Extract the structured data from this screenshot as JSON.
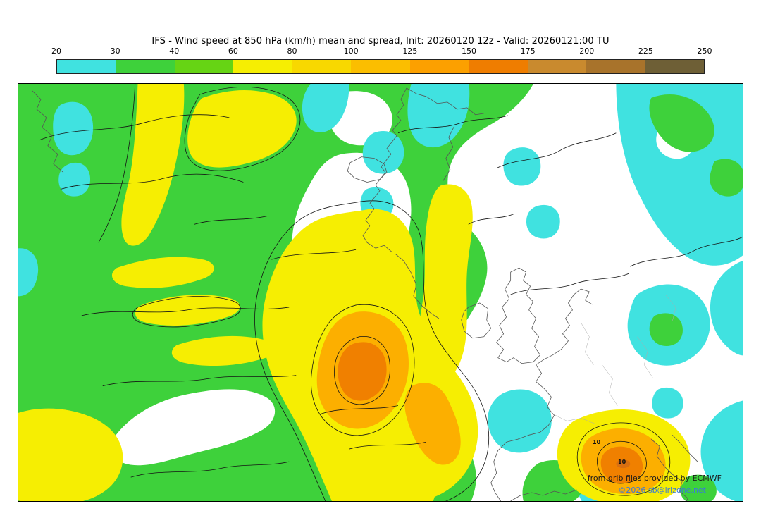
{
  "header": {
    "title": "IFS - Wind speed at 850 hPa (km/h) mean and spread, Init: 20260120 12z - Valid: 20260121:00 TU"
  },
  "colorbar": {
    "ticks": [
      "20",
      "30",
      "40",
      "60",
      "80",
      "100",
      "125",
      "150",
      "175",
      "200",
      "225",
      "250"
    ],
    "segment_colors": [
      "#40e2e0",
      "#3ed13b",
      "#66d414",
      "#f6ee02",
      "#f8d800",
      "#fbbe00",
      "#fca000",
      "#ef7d00",
      "#c98a2e",
      "#a8732b",
      "#6e5f36"
    ]
  },
  "map": {
    "contour_labels": [
      {
        "text": "10"
      },
      {
        "text": "10"
      }
    ],
    "attribution_line1": "from grib files provided by ECMWF",
    "attribution_line2": "©2026 sb@irizone.net",
    "colors": {
      "cyan": "#40e2e0",
      "green": "#3ed13b",
      "yellow": "#f6ee02",
      "orange": "#fcaf00",
      "deep_orange": "#f08000",
      "darkest_orange": "#d86f10",
      "white": "#ffffff",
      "contour": "#141414",
      "coastline": "#555555",
      "border": "#ababab"
    }
  },
  "chart_data": {
    "type": "heatmap",
    "title": "IFS - Wind speed at 850 hPa (km/h) mean and spread",
    "init": "20260120 12z",
    "valid": "20260121:00 TU",
    "units": "km/h",
    "scale_ticks": [
      20,
      30,
      40,
      60,
      80,
      100,
      125,
      150,
      175,
      200,
      225,
      250
    ],
    "legend_position": "top"
  }
}
